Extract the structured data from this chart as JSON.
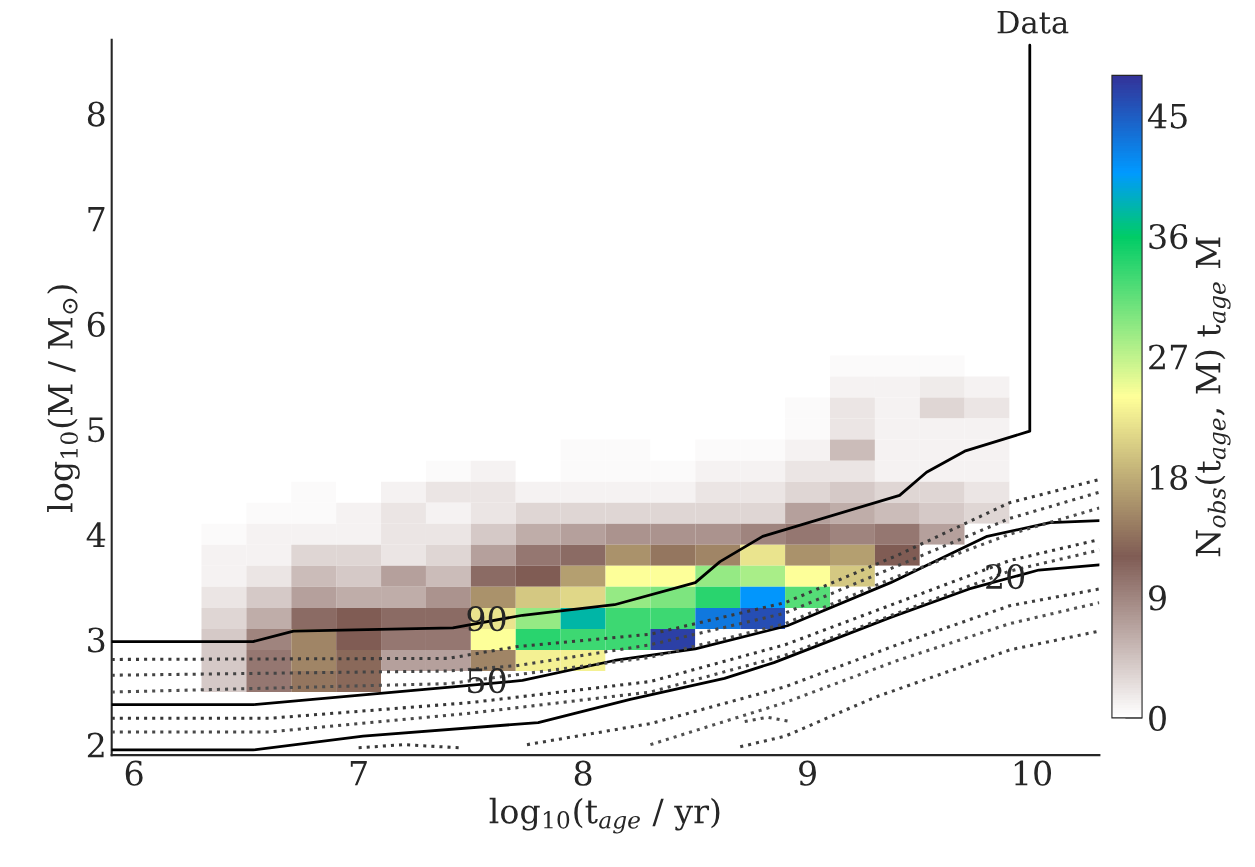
{
  "chart_data": {
    "type": "heatmap",
    "xlabel": "log$_{10}$(t$_{age}$ / yr)",
    "ylabel": "log$_{10}$(M / M$_{⊙}$)",
    "clabel": "N$_{obs}$(t$_{age}$, M) t$_{age}$ M",
    "cells": [
      [
        0,
        0,
        0,
        0,
        0,
        0,
        0,
        0,
        0,
        0,
        0,
        0,
        0,
        0,
        0,
        0,
        0,
        0,
        0,
        0,
        0,
        0
      ],
      [
        0,
        0,
        0,
        0,
        0,
        0,
        0,
        0,
        0,
        0,
        0,
        0,
        0,
        0,
        0,
        0,
        0,
        0,
        0,
        0,
        0,
        0
      ],
      [
        0,
        0,
        0,
        0,
        0,
        0,
        0,
        0,
        0,
        0,
        0,
        0,
        0,
        0,
        0,
        0,
        0,
        0,
        0,
        0,
        0,
        0
      ],
      [
        0,
        0,
        0,
        0,
        0,
        0,
        0,
        0,
        0,
        0,
        0,
        0,
        0,
        0,
        0,
        0,
        0,
        0,
        0,
        0,
        0,
        0
      ],
      [
        0,
        0,
        0,
        0,
        0,
        0,
        0,
        0,
        0,
        0,
        0,
        0,
        0,
        0,
        0,
        0,
        0,
        0,
        0,
        0,
        0,
        0
      ],
      [
        0,
        0,
        0,
        0,
        0,
        0,
        0,
        0,
        0,
        0,
        0,
        0,
        0,
        0,
        0,
        0,
        0,
        0,
        0,
        0,
        0,
        0
      ],
      [
        0,
        0,
        0,
        0,
        0,
        0,
        0,
        0,
        0,
        0,
        0,
        0,
        0,
        0,
        0,
        0,
        0,
        0,
        0,
        0,
        0,
        0
      ],
      [
        0,
        0,
        0,
        0,
        0,
        0,
        0,
        0,
        0,
        0,
        0,
        0,
        0,
        0,
        0,
        0,
        0,
        0,
        0,
        0,
        0,
        0
      ],
      [
        0,
        0,
        0,
        0,
        0,
        0,
        0,
        0,
        0,
        0,
        0,
        0,
        0,
        0,
        0,
        0,
        0,
        0,
        0,
        0,
        0,
        0
      ],
      [
        0,
        0,
        0,
        0,
        0,
        0,
        0,
        0,
        0,
        0,
        0,
        0,
        0,
        0,
        0,
        0,
        0,
        0,
        0,
        0,
        0,
        0
      ],
      [
        0,
        0,
        0,
        0,
        0,
        0,
        0,
        0,
        0,
        0,
        0,
        0,
        0,
        0,
        0,
        0,
        0,
        0,
        0,
        0,
        0,
        0
      ],
      [
        0,
        0,
        0,
        0,
        0,
        0,
        0,
        0,
        0,
        0,
        0,
        0,
        0,
        0,
        0,
        0,
        0,
        0,
        0,
        0,
        0,
        0
      ],
      [
        0,
        0,
        0,
        0,
        0,
        0,
        0,
        0,
        0,
        0,
        0,
        0,
        0,
        0,
        0,
        0,
        0,
        0,
        0,
        0,
        0,
        0
      ],
      [
        0,
        0,
        0,
        0,
        0,
        0,
        0,
        0,
        0,
        0,
        0,
        0,
        0,
        0,
        0,
        0,
        0,
        0,
        0,
        0,
        0,
        0
      ],
      [
        0,
        0,
        0,
        0,
        0,
        0,
        0,
        0,
        0,
        0,
        0,
        0,
        0,
        0,
        0,
        0,
        0,
        0,
        0,
        0,
        0,
        0
      ],
      [
        0,
        0,
        0,
        0,
        0,
        0,
        0,
        0,
        0,
        0,
        0,
        0,
        0,
        0,
        0,
        0,
        0.5,
        0.5,
        0.5,
        0,
        0,
        0
      ],
      [
        0,
        0,
        0,
        0,
        0,
        0,
        0,
        0,
        0,
        0,
        0,
        0,
        0,
        0,
        0,
        0,
        1,
        1,
        1.5,
        1,
        0,
        0
      ],
      [
        0,
        0,
        0,
        0,
        0,
        0,
        0,
        0,
        0,
        0,
        0,
        0,
        0,
        0,
        0,
        0.5,
        2,
        1,
        3,
        2,
        0,
        0
      ],
      [
        0,
        0,
        0,
        0,
        0,
        0,
        0,
        0,
        0,
        0,
        0,
        0,
        0,
        0,
        0,
        0.5,
        2,
        1,
        1,
        1,
        0,
        0
      ],
      [
        0,
        0,
        0,
        0,
        0,
        0,
        0,
        0,
        0,
        0,
        0.5,
        0.5,
        0,
        0.5,
        0.5,
        1,
        5,
        1,
        1,
        1,
        0,
        0
      ],
      [
        0,
        0,
        0,
        0,
        0,
        0,
        0,
        0.5,
        1,
        0,
        0.5,
        0.5,
        0.5,
        1,
        1,
        2,
        2,
        1,
        1,
        1,
        0,
        0
      ],
      [
        0,
        0,
        0,
        0,
        0.5,
        0,
        1,
        2,
        2,
        1,
        1,
        1,
        1,
        2,
        2,
        3,
        4,
        3,
        3,
        2,
        0,
        0
      ],
      [
        0,
        0,
        0,
        0.5,
        0.5,
        1,
        2,
        1,
        2,
        3,
        3,
        3,
        3,
        3,
        3,
        7,
        6,
        5,
        4,
        3,
        0,
        0
      ],
      [
        0,
        0,
        0.5,
        1,
        1,
        1,
        2,
        2,
        4,
        6,
        7,
        8,
        8,
        8,
        9,
        10,
        9,
        10,
        7,
        0,
        0,
        0
      ],
      [
        0,
        0,
        1,
        1,
        3,
        3,
        2,
        3,
        7,
        10,
        11,
        16,
        14,
        15,
        22,
        16,
        17,
        12,
        0,
        0,
        0,
        0
      ],
      [
        0,
        0,
        1,
        2,
        5,
        4,
        7,
        5,
        11,
        12,
        17,
        24,
        24,
        29,
        28,
        24,
        20,
        0,
        0,
        0,
        0,
        0
      ],
      [
        0,
        0,
        2,
        4,
        7,
        6,
        6,
        8,
        16,
        20,
        21,
        29,
        30,
        34,
        41,
        32,
        0,
        0,
        0,
        0,
        0,
        0
      ],
      [
        0,
        0,
        3,
        6,
        11,
        12,
        11,
        11,
        22,
        29,
        38,
        33,
        33,
        43,
        46,
        0,
        0,
        0,
        0,
        0,
        0,
        0
      ],
      [
        0,
        0,
        4,
        9,
        15,
        12,
        10,
        10,
        24,
        34,
        33,
        33,
        47,
        0,
        0,
        0,
        0,
        0,
        0,
        0,
        0,
        0
      ],
      [
        0,
        0,
        4,
        10,
        15,
        13,
        7,
        7,
        15,
        23,
        23,
        0,
        0,
        0,
        0,
        0,
        0,
        0,
        0,
        0,
        0,
        0
      ],
      [
        0,
        0,
        4,
        10,
        14,
        13,
        0,
        0,
        0,
        0,
        0,
        0,
        0,
        0,
        0,
        0,
        0,
        0,
        0,
        0,
        0,
        0
      ],
      [
        0,
        0,
        0,
        0,
        0,
        0,
        0,
        0,
        0,
        0,
        0,
        0,
        0,
        0,
        0,
        0,
        0,
        0,
        0,
        0,
        0,
        0
      ],
      [
        0,
        0,
        0,
        0,
        0,
        0,
        0,
        0,
        0,
        0,
        0,
        0,
        0,
        0,
        0,
        0,
        0,
        0,
        0,
        0,
        0,
        0
      ],
      [
        0,
        0,
        0,
        0,
        0,
        0,
        0,
        0,
        0,
        0,
        0,
        0,
        0,
        0,
        0,
        0,
        0,
        0,
        0,
        0,
        0,
        0
      ]
    ],
    "clim": [
      0,
      48
    ],
    "cticks": [
      0,
      9,
      18,
      27,
      36,
      45
    ],
    "series": [
      {
        "type": "line",
        "color": "#000000",
        "line_style": "solid",
        "x": [
          5.9,
          6.53,
          6.71,
          7.42,
          7.73,
          8.14,
          8.5,
          8.61,
          8.8,
          9.41,
          9.53,
          9.7,
          9.99,
          9.99
        ],
        "values": [
          2.98,
          2.98,
          3.08,
          3.11,
          3.23,
          3.33,
          3.54,
          3.74,
          3.98,
          4.37,
          4.59,
          4.79,
          4.98,
          8.65
        ]
      },
      {
        "type": "line",
        "color": "#000000",
        "line_style": "solid",
        "x": [
          5.9,
          6.53,
          7.42,
          7.73,
          8.14,
          8.5,
          8.91,
          9.37,
          9.8,
          10.08,
          10.3
        ],
        "values": [
          2.38,
          2.38,
          2.55,
          2.61,
          2.8,
          2.91,
          3.13,
          3.54,
          3.98,
          4.11,
          4.13
        ]
      },
      {
        "type": "line",
        "color": "#000000",
        "line_style": "solid",
        "x": [
          5.9,
          6.53,
          7.02,
          7.8,
          8.21,
          8.63,
          8.85,
          9.37,
          9.72,
          10.03,
          10.3
        ],
        "values": [
          1.95,
          1.95,
          2.08,
          2.21,
          2.43,
          2.63,
          2.78,
          3.21,
          3.48,
          3.66,
          3.71
        ]
      },
      {
        "type": "line",
        "color": "#3a3a3a",
        "line_style": "dotted",
        "x": [
          5.9,
          7.4,
          7.7,
          8.3,
          8.9,
          9.4,
          9.9,
          10.3
        ],
        "values": [
          2.81,
          2.82,
          2.93,
          3.05,
          3.35,
          3.8,
          4.3,
          4.52
        ]
      },
      {
        "type": "line",
        "color": "#444444",
        "line_style": "dotted",
        "x": [
          5.9,
          7.4,
          7.7,
          8.3,
          8.9,
          9.4,
          9.9,
          10.3
        ],
        "values": [
          2.66,
          2.7,
          2.75,
          2.95,
          3.25,
          3.7,
          4.15,
          4.4
        ]
      },
      {
        "type": "line",
        "color": "#4e4e4e",
        "line_style": "dotted",
        "x": [
          5.9,
          7.4,
          8.3,
          8.9,
          9.4,
          9.9,
          10.3
        ],
        "values": [
          2.5,
          2.58,
          2.83,
          3.15,
          3.6,
          4.0,
          4.25
        ]
      },
      {
        "type": "line",
        "color": "#363636",
        "line_style": "dotted",
        "x": [
          5.9,
          6.6,
          7.5,
          8.3,
          8.9,
          9.4,
          9.9,
          10.3
        ],
        "values": [
          2.25,
          2.25,
          2.4,
          2.6,
          2.95,
          3.35,
          3.75,
          3.95
        ]
      },
      {
        "type": "line",
        "color": "#484848",
        "line_style": "dotted",
        "x": [
          5.9,
          6.6,
          7.5,
          8.3,
          8.9,
          9.4,
          9.9,
          10.3
        ],
        "values": [
          2.12,
          2.12,
          2.3,
          2.5,
          2.85,
          3.25,
          3.65,
          3.85
        ]
      },
      {
        "type": "line",
        "color": "#3e3e3e",
        "line_style": "dotted",
        "x": [
          7.75,
          8.3,
          8.9,
          9.4,
          9.9,
          10.3
        ],
        "values": [
          2.0,
          2.2,
          2.55,
          2.95,
          3.32,
          3.48
        ]
      },
      {
        "type": "line",
        "color": "#525252",
        "line_style": "dotted",
        "x": [
          8.3,
          8.9,
          9.4,
          9.9,
          10.3
        ],
        "values": [
          2.0,
          2.4,
          2.8,
          3.15,
          3.35
        ]
      },
      {
        "type": "line",
        "color": "#404040",
        "line_style": "dotted",
        "x": [
          8.7,
          8.9,
          9.3,
          9.9,
          10.3
        ],
        "values": [
          1.98,
          2.08,
          2.45,
          2.9,
          3.08
        ]
      },
      {
        "type": "line",
        "color": "#4a4a4a",
        "line_style": "dotted",
        "x": [
          8.72,
          8.82,
          8.92
        ],
        "values": [
          2.22,
          2.26,
          2.22
        ]
      },
      {
        "type": "line",
        "color": "#383838",
        "line_style": "dotted",
        "x": [
          7.0,
          7.2,
          7.45
        ],
        "values": [
          1.97,
          2.0,
          1.97
        ]
      }
    ],
    "annotations": [
      {
        "text": "90",
        "x": 7.57,
        "y": 3.17
      },
      {
        "text": "50",
        "x": 7.57,
        "y": 2.58
      },
      {
        "text": "20",
        "x": 9.88,
        "y": 3.57
      },
      {
        "text": "Data",
        "x": 9.99,
        "y": 8.65
      }
    ],
    "xlim": [
      5.9,
      10.3
    ],
    "ylim": [
      1.9,
      8.7
    ],
    "xticks": [
      6,
      7,
      8,
      9,
      10
    ],
    "yticks": [
      2,
      3,
      4,
      5,
      6,
      7,
      8
    ],
    "grid": false,
    "legend": false
  }
}
